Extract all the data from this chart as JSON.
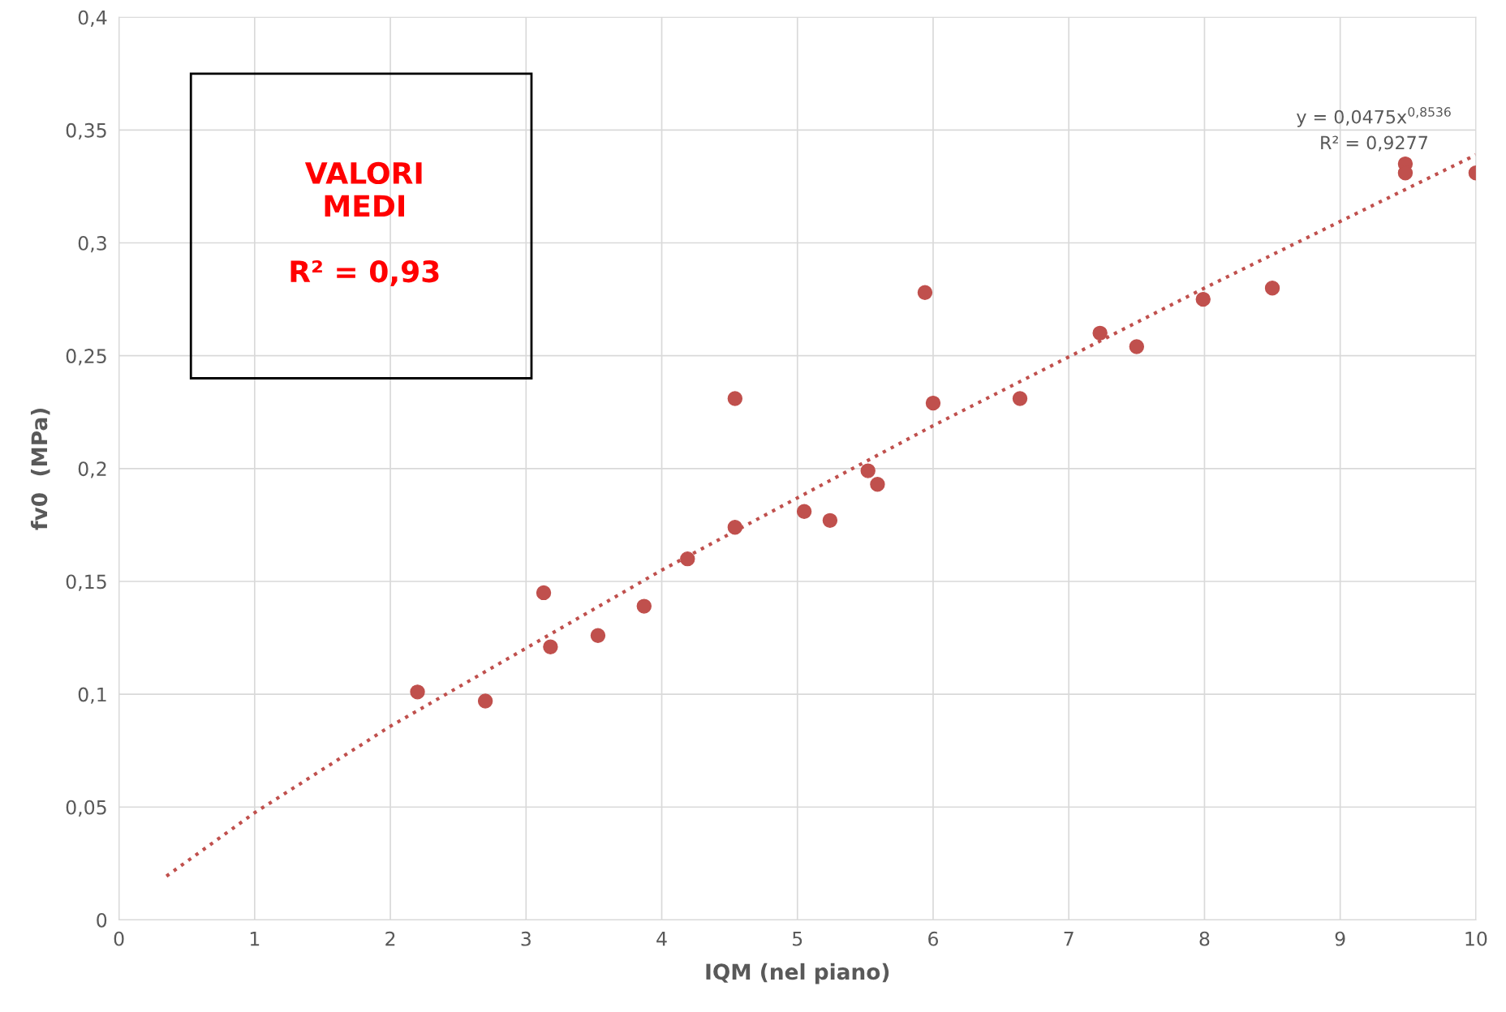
{
  "chart_data": {
    "type": "scatter",
    "xlabel": "IQM (nel piano)",
    "ylabel": "fv0  (MPa)",
    "xlim": [
      0,
      10
    ],
    "xticks": [
      0,
      1,
      2,
      3,
      4,
      5,
      6,
      7,
      8,
      9,
      10
    ],
    "ylim": [
      0,
      0.4
    ],
    "yticks": [
      {
        "value": 0,
        "label": "0"
      },
      {
        "value": 0.05,
        "label": "0,05"
      },
      {
        "value": 0.1,
        "label": "0,1"
      },
      {
        "value": 0.15,
        "label": "0,15"
      },
      {
        "value": 0.2,
        "label": "0,2"
      },
      {
        "value": 0.25,
        "label": "0,25"
      },
      {
        "value": 0.3,
        "label": "0,3"
      },
      {
        "value": 0.35,
        "label": "0,35"
      },
      {
        "value": 0.4,
        "label": "0,4"
      }
    ],
    "grid": true,
    "legend": false,
    "series": [
      {
        "color": "#c0504d",
        "marker": "circle",
        "x": [
          2.2,
          2.7,
          3.13,
          3.18,
          3.53,
          3.87,
          4.19,
          4.54,
          4.54,
          5.05,
          5.24,
          5.52,
          5.59,
          5.94,
          6.0,
          6.64,
          7.23,
          7.5,
          7.99,
          8.5,
          9.48,
          9.48,
          10.0
        ],
        "values": [
          0.101,
          0.097,
          0.145,
          0.121,
          0.126,
          0.139,
          0.16,
          0.231,
          0.174,
          0.181,
          0.177,
          0.199,
          0.193,
          0.278,
          0.229,
          0.231,
          0.26,
          0.254,
          0.275,
          0.28,
          0.335,
          0.331,
          0.331
        ]
      },
      {
        "type": "line",
        "color": "#c0504d",
        "line_style": "dotted",
        "marker": "none",
        "x": [
          0.35,
          1,
          2,
          4,
          6,
          8,
          10
        ],
        "values": [
          0.0194,
          0.0475,
          0.0858,
          0.155,
          0.219,
          0.28,
          0.339
        ]
      }
    ],
    "annotations": [
      "VALORI\nMEDI\n\nR² = 0,93",
      "y = 0,0475x$^{0,8536}$\nR² = 0,9277"
    ]
  }
}
